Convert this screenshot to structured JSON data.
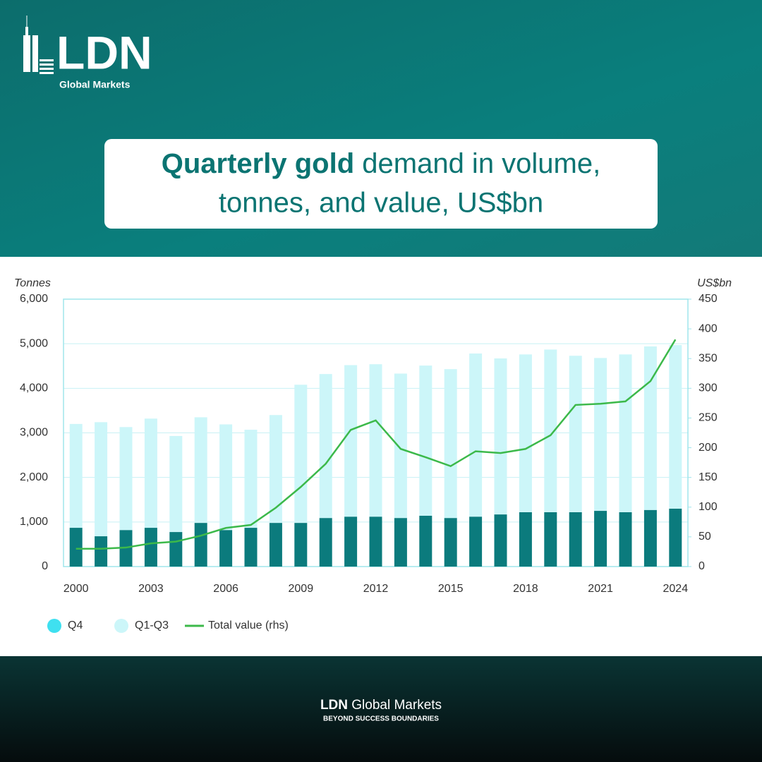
{
  "brand": {
    "logo": "LDN",
    "sub": "Global Markets"
  },
  "banner": {
    "bold": "Quarterly gold",
    "rest_line1": "demand in volume,",
    "line2": "tonnes, and value, US$bn"
  },
  "chart_data": {
    "type": "bar",
    "stacked": true,
    "y_label": "Tonnes",
    "y2_label": "US$bn",
    "categories": [
      "2000",
      null,
      null,
      "2003",
      null,
      null,
      "2006",
      null,
      null,
      "2009",
      null,
      null,
      "2012",
      null,
      null,
      "2015",
      null,
      null,
      "2018",
      null,
      null,
      "2021",
      null,
      null,
      "2024"
    ],
    "series": [
      {
        "name": "Q4",
        "type": "bar",
        "color": "#0b7b7d",
        "values": [
          870,
          680,
          820,
          870,
          775,
          980,
          820,
          870,
          980,
          980,
          1090,
          1120,
          1120,
          1090,
          1140,
          1090,
          1120,
          1170,
          1220,
          1220,
          1220,
          1250,
          1220,
          1270,
          1300
        ]
      },
      {
        "name": "Q1-Q3",
        "type": "bar",
        "color": "#ccf6f9",
        "values": [
          2330,
          2560,
          2310,
          2450,
          2155,
          2370,
          2370,
          2200,
          2420,
          3100,
          3230,
          3400,
          3420,
          3240,
          3370,
          3340,
          3660,
          3500,
          3540,
          3650,
          3510,
          3430,
          3540,
          3670,
          3670
        ]
      },
      {
        "name": "Total value (rhs)",
        "type": "line",
        "axis": "y2",
        "color": "#3cb94a",
        "values": [
          30,
          30,
          32,
          39,
          42,
          52,
          65,
          70,
          99,
          134,
          173,
          230,
          246,
          198,
          184,
          169,
          194,
          191,
          198,
          221,
          272,
          274,
          278,
          312,
          382
        ]
      }
    ],
    "ylim": [
      0,
      6000
    ],
    "yticks": [
      0,
      {
        "value": 1000,
        "label": "1,000"
      },
      {
        "value": 2000,
        "label": "2,000"
      },
      {
        "value": 3000,
        "label": "3,000"
      },
      {
        "value": 4000,
        "label": "4,000"
      },
      {
        "value": 5000,
        "label": "5,000"
      },
      {
        "value": 6000,
        "label": "6,000"
      }
    ],
    "y2lim": [
      0,
      450
    ],
    "y2ticks": [
      0,
      50,
      100,
      150,
      200,
      250,
      300,
      350,
      400,
      450
    ],
    "grid": true,
    "legend": "bottom-left"
  },
  "footer": {
    "brand_bold": "LDN",
    "brand_rest": "Global Markets",
    "tagline": "BEYOND SUCCESS BOUNDARIES"
  }
}
